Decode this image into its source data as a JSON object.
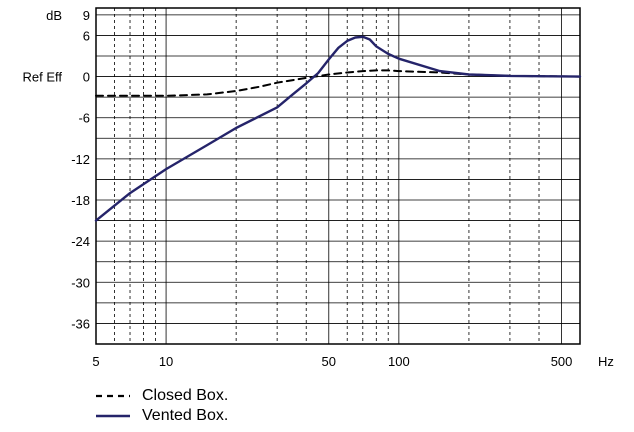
{
  "chart_data": {
    "type": "line",
    "xscale": "log",
    "xlim": [
      5,
      600
    ],
    "ylim": [
      -39,
      10
    ],
    "x_ticks": [
      {
        "value": 5,
        "label": "5"
      },
      {
        "value": 10,
        "label": "10"
      },
      {
        "value": 50,
        "label": "50"
      },
      {
        "value": 100,
        "label": "100"
      },
      {
        "value": 500,
        "label": "500"
      }
    ],
    "x_minor_gridlines": [
      6,
      7,
      8,
      9,
      20,
      30,
      40,
      60,
      70,
      80,
      90,
      200,
      300,
      400
    ],
    "x_unit_label": "Hz",
    "y_ticks": [
      {
        "value": 9,
        "label": "9"
      },
      {
        "value": 6,
        "label": "6"
      },
      {
        "value": 3,
        "label": ""
      },
      {
        "value": 0,
        "label": "0"
      },
      {
        "value": -3,
        "label": ""
      },
      {
        "value": -6,
        "label": "-6"
      },
      {
        "value": -9,
        "label": ""
      },
      {
        "value": -12,
        "label": "-12"
      },
      {
        "value": -15,
        "label": ""
      },
      {
        "value": -18,
        "label": "-18"
      },
      {
        "value": -21,
        "label": ""
      },
      {
        "value": -24,
        "label": "-24"
      },
      {
        "value": -27,
        "label": ""
      },
      {
        "value": -30,
        "label": "-30"
      },
      {
        "value": -33,
        "label": ""
      },
      {
        "value": -36,
        "label": "-36"
      }
    ],
    "y_unit_label": "dB",
    "y_ref_label": "Ref Eff",
    "grid": true,
    "legend_position": "bottom-left",
    "series": [
      {
        "name": "Closed Box.",
        "style": "dashed",
        "color": "#000000",
        "x": [
          5,
          10,
          15,
          20,
          25,
          30,
          40,
          50,
          60,
          70,
          80,
          90,
          100,
          150,
          200,
          300,
          600
        ],
        "y": [
          -2.8,
          -2.8,
          -2.6,
          -2.1,
          -1.5,
          -0.9,
          -0.2,
          0.3,
          0.6,
          0.8,
          0.9,
          0.9,
          0.8,
          0.6,
          0.3,
          0.1,
          0
        ]
      },
      {
        "name": "Vented Box.",
        "style": "solid",
        "color": "#25246a",
        "x": [
          5,
          7,
          10,
          15,
          20,
          30,
          35,
          40,
          45,
          50,
          55,
          60,
          65,
          70,
          75,
          80,
          90,
          100,
          150,
          200,
          300,
          600
        ],
        "y": [
          -21.0,
          -17.0,
          -13.5,
          -10.0,
          -7.5,
          -4.5,
          -2.6,
          -1.0,
          0.5,
          2.5,
          4.2,
          5.2,
          5.7,
          5.8,
          5.4,
          4.4,
          3.3,
          2.6,
          0.8,
          0.3,
          0.1,
          0
        ]
      }
    ]
  }
}
